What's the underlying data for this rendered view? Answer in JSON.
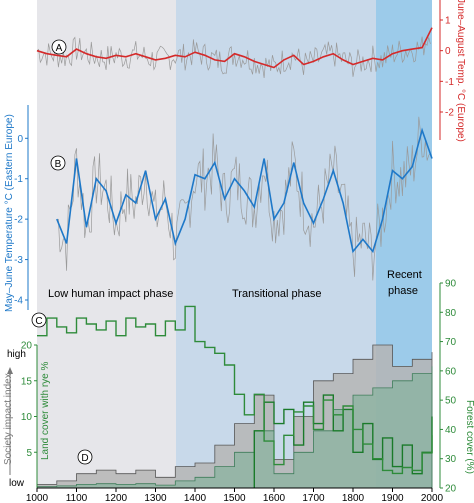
{
  "chart_data": [
    {
      "panel": "A",
      "type": "line",
      "ylabel": "June–August Temp. °C (Europe)",
      "y_ticks": [
        "1",
        "0",
        "-1",
        "-2"
      ],
      "ylim": [
        -2,
        1
      ],
      "xlim": [
        1000,
        2000
      ],
      "color": "#d42a2a",
      "x": [
        1000,
        1025,
        1050,
        1075,
        1100,
        1125,
        1150,
        1175,
        1200,
        1225,
        1250,
        1275,
        1300,
        1325,
        1350,
        1375,
        1400,
        1425,
        1450,
        1475,
        1500,
        1525,
        1550,
        1575,
        1600,
        1625,
        1650,
        1675,
        1700,
        1725,
        1750,
        1775,
        1800,
        1825,
        1850,
        1875,
        1900,
        1925,
        1950,
        1975,
        2000
      ],
      "values": [
        0.0,
        -0.1,
        -0.15,
        -0.2,
        0.05,
        -0.1,
        -0.2,
        -0.25,
        -0.15,
        -0.2,
        -0.1,
        -0.2,
        -0.3,
        -0.25,
        -0.15,
        -0.2,
        -0.05,
        -0.15,
        -0.3,
        -0.35,
        -0.1,
        -0.2,
        -0.35,
        -0.45,
        -0.55,
        -0.3,
        -0.15,
        -0.45,
        -0.35,
        -0.2,
        -0.1,
        -0.3,
        -0.45,
        -0.35,
        -0.25,
        -0.3,
        -0.1,
        0.0,
        0.05,
        0.1,
        0.75
      ]
    },
    {
      "panel": "B",
      "type": "line",
      "ylabel": "May–June Temperature °C (Eastern Europe)",
      "y_ticks": [
        "0",
        "-1",
        "-2",
        "-3",
        "-4"
      ],
      "ylim": [
        -4,
        0.7
      ],
      "xlim": [
        1000,
        2000
      ],
      "color": "#1e78c8",
      "x": [
        1050,
        1075,
        1100,
        1125,
        1150,
        1175,
        1200,
        1225,
        1250,
        1275,
        1300,
        1325,
        1350,
        1375,
        1400,
        1425,
        1450,
        1475,
        1500,
        1525,
        1550,
        1575,
        1600,
        1625,
        1650,
        1675,
        1700,
        1725,
        1750,
        1775,
        1800,
        1825,
        1850,
        1875,
        1900,
        1925,
        1950,
        1975,
        2000
      ],
      "values": [
        -2.0,
        -2.6,
        -0.5,
        -2.2,
        -1.0,
        -1.3,
        -2.1,
        -1.4,
        -1.6,
        -0.8,
        -2.0,
        -1.5,
        -2.6,
        -2.0,
        -0.9,
        -1.0,
        -0.6,
        -1.5,
        -1.0,
        -1.3,
        -1.7,
        -0.5,
        -2.0,
        -1.6,
        -0.6,
        -1.6,
        -2.1,
        -1.5,
        -0.8,
        -1.6,
        -2.8,
        -2.5,
        -2.8,
        -2.0,
        -0.8,
        -1.0,
        -0.7,
        0.2,
        -0.5
      ]
    },
    {
      "panel": "C",
      "type": "line",
      "ylabel": "Forest cover (%)",
      "y_ticks": [
        "90",
        "80",
        "70",
        "60",
        "50",
        "40",
        "30",
        "20"
      ],
      "ylim": [
        20,
        90
      ],
      "xlim": [
        1000,
        2000
      ],
      "color": "#2e8b3a",
      "x": [
        1000,
        1025,
        1050,
        1075,
        1100,
        1125,
        1150,
        1175,
        1200,
        1225,
        1250,
        1275,
        1300,
        1325,
        1350,
        1375,
        1400,
        1425,
        1450,
        1475,
        1500,
        1525,
        1550,
        1575,
        1600,
        1625,
        1650,
        1675,
        1700,
        1725,
        1750,
        1775,
        1800,
        1825,
        1850,
        1875,
        1900,
        1925,
        1950,
        1975,
        2000
      ],
      "values": [
        72,
        78,
        75,
        73,
        78,
        76,
        74,
        77,
        72,
        78,
        75,
        76,
        72,
        77,
        74,
        82,
        70,
        68,
        66,
        62,
        52,
        45,
        52,
        36,
        28,
        38,
        46,
        48,
        40,
        50,
        45,
        48,
        40,
        35,
        30,
        26,
        25,
        27,
        26,
        32,
        38
      ]
    },
    {
      "panel": "D",
      "type": "area",
      "ylabel": "Land cover with rye %",
      "y2label": "Society impact index",
      "y_ticks": [
        "20",
        "15",
        "10",
        "5"
      ],
      "ylim": [
        0,
        20
      ],
      "index_labels": [
        "high",
        "low"
      ],
      "xlim": [
        1000,
        2000
      ],
      "series": [
        {
          "color": "#b5b5b5",
          "x": [
            1000,
            1050,
            1100,
            1150,
            1200,
            1250,
            1300,
            1350,
            1400,
            1450,
            1500,
            1550,
            1600,
            1650,
            1700,
            1750,
            1800,
            1850,
            1900,
            1950,
            2000
          ],
          "values": [
            0.5,
            1.0,
            2.0,
            2.5,
            2.0,
            2.5,
            1.5,
            3.0,
            3.5,
            6.0,
            9.0,
            13.0,
            4.0,
            10.0,
            15.0,
            16.0,
            18.0,
            20.0,
            17.0,
            18.0,
            19.0
          ]
        },
        {
          "color": "#7fb098",
          "x": [
            1000,
            1050,
            1100,
            1150,
            1200,
            1250,
            1300,
            1350,
            1400,
            1450,
            1500,
            1550,
            1600,
            1650,
            1700,
            1750,
            1800,
            1850,
            1900,
            1950,
            2000
          ],
          "values": [
            0.2,
            0.3,
            0.5,
            0.6,
            0.5,
            0.6,
            0.4,
            1.0,
            1.5,
            3.0,
            5.0,
            8.0,
            2.0,
            5.0,
            8.0,
            11.0,
            13.0,
            14.0,
            15.0,
            16.0,
            17.0
          ]
        },
        {
          "color": "#1a7a2a",
          "x": [
            1550,
            1575,
            1600,
            1625,
            1650,
            1675,
            1700,
            1725,
            1750,
            1775,
            1800,
            1825,
            1850,
            1875,
            1900,
            1925,
            1950,
            1975,
            2000
          ],
          "values": [
            8,
            12,
            9,
            11,
            6,
            12,
            9,
            13,
            8,
            11,
            5,
            9,
            4,
            7,
            3,
            6,
            2,
            5,
            10
          ]
        }
      ]
    }
  ],
  "x_axis": {
    "ticks": [
      "1000",
      "1100",
      "1200",
      "1300",
      "1400",
      "1500",
      "1600",
      "1700",
      "1800",
      "1900",
      "2000"
    ]
  },
  "phases": [
    {
      "label": "Low human impact phase",
      "start": 1000,
      "end": 1360,
      "color": "#e6e6ea"
    },
    {
      "label": "Transitional phase",
      "start": 1360,
      "end": 1870,
      "color": "#c8d9ea"
    },
    {
      "label": "Recent\nphase",
      "start": 1870,
      "end": 2000,
      "color": "#9ccbea"
    }
  ],
  "panel_letters": [
    "A",
    "B",
    "C",
    "D"
  ],
  "axis_titles": {
    "red": "June–August Temp. °C (Europe)",
    "blue": "May–June Temperature °C (Eastern Europe)",
    "green_right": "Forest cover (%)",
    "green_left": "Land cover with rye %",
    "grey": "Society impact index"
  },
  "index_labels": {
    "high": "high",
    "low": "low"
  },
  "phase_labels": {
    "low": "Low human impact phase",
    "transitional": "Transitional phase",
    "recent_line1": "Recent",
    "recent_line2": "phase"
  }
}
